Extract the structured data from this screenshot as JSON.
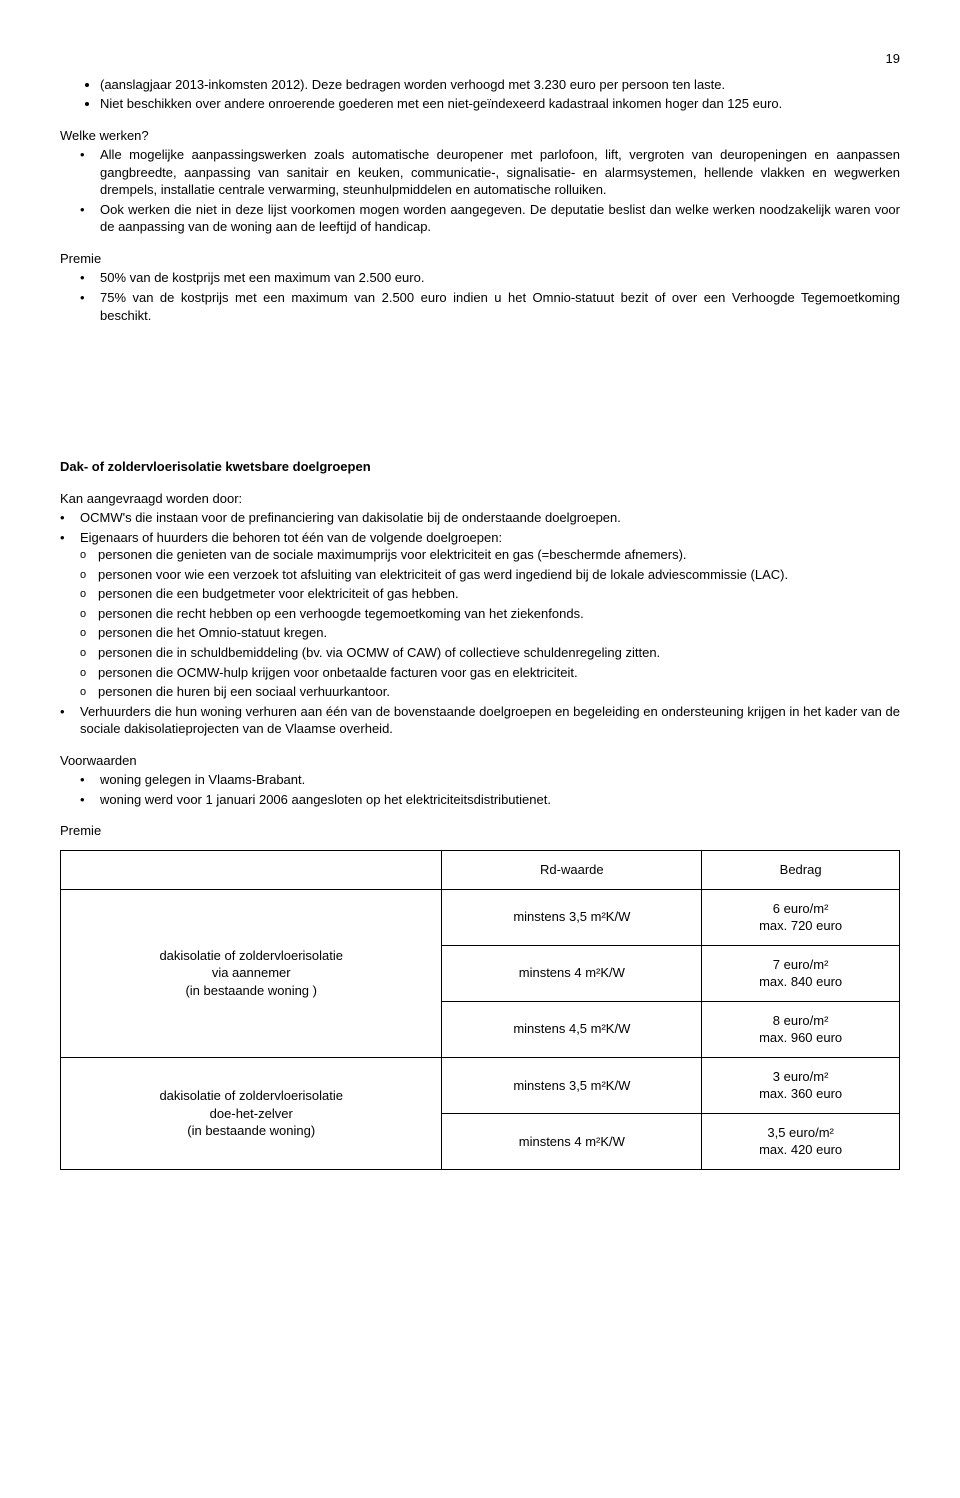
{
  "pageNumber": "19",
  "intro": {
    "items": [
      "(aanslagjaar 2013-inkomsten 2012). Deze bedragen worden verhoogd met 3.230 euro per persoon ten laste.",
      "Niet beschikken over andere onroerende goederen met een niet-geïndexeerd kadastraal inkomen hoger dan 125 euro."
    ]
  },
  "werken": {
    "heading": "Welke werken?",
    "items": [
      "Alle mogelijke aanpassingswerken zoals automatische deuropener met parlofoon, lift, vergroten van deuropeningen en aanpassen gangbreedte, aanpassing van sanitair en keuken, communicatie-, signalisatie- en alarmsystemen, hellende vlakken en wegwerken drempels, installatie centrale verwarming, steunhulpmiddelen en automatische rolluiken.",
      "Ook werken die niet in deze lijst voorkomen mogen worden aangegeven. De deputatie beslist dan welke werken noodzakelijk waren voor de aanpassing van de woning aan de leeftijd of handicap."
    ]
  },
  "premie1": {
    "heading": "Premie",
    "items": [
      "50% van de kostprijs met een maximum van 2.500 euro.",
      "75% van de kostprijs met een maximum van 2.500 euro indien u het Omnio-statuut bezit of over een Verhoogde Tegemoetkoming beschikt."
    ]
  },
  "dak": {
    "heading": "Dak- of zoldervloerisolatie kwetsbare doelgroepen",
    "kanHeading": "Kan aangevraagd worden door:",
    "items": [
      {
        "text": "OCMW's die instaan voor de prefinanciering van dakisolatie bij de onderstaande doelgroepen."
      },
      {
        "text": "Eigenaars of huurders die behoren tot één van de volgende doelgroepen:",
        "sub": [
          "personen die genieten van de sociale maximumprijs voor elektriciteit en gas (=beschermde afnemers).",
          "personen voor wie een verzoek tot afsluiting van elektriciteit of gas werd ingediend bij de lokale adviescommissie (LAC).",
          "personen die een budgetmeter voor elektriciteit of gas hebben.",
          "personen die recht hebben op een verhoogde tegemoetkoming van het ziekenfonds.",
          "personen die het Omnio-statuut kregen.",
          "personen die in schuldbemiddeling (bv. via OCMW of CAW) of collectieve schuldenregeling zitten.",
          "personen die OCMW-hulp krijgen voor onbetaalde facturen voor gas en elektriciteit.",
          "personen die huren bij een sociaal verhuurkantoor."
        ]
      },
      {
        "text": "Verhuurders die hun woning verhuren aan één van de bovenstaande doelgroepen en begeleiding en ondersteuning krijgen in het kader van de sociale dakisolatieprojecten van de Vlaamse overheid."
      }
    ]
  },
  "voorwaarden": {
    "heading": "Voorwaarden",
    "items": [
      "woning gelegen in Vlaams-Brabant.",
      "woning werd voor 1 januari 2006 aangesloten op het elektriciteitsdistributienet."
    ]
  },
  "premie2": {
    "heading": "Premie",
    "table": {
      "headers": [
        "",
        "Rd-waarde",
        "Bedrag"
      ],
      "groups": [
        {
          "label": "dakisolatie of zoldervloerisolatie\nvia aannemer\n(in bestaande woning )",
          "rows": [
            {
              "rd": "minstens 3,5 m²K/W",
              "bedrag": "6 euro/m²\nmax. 720 euro"
            },
            {
              "rd": "minstens 4 m²K/W",
              "bedrag": "7 euro/m²\nmax. 840 euro"
            },
            {
              "rd": "minstens 4,5 m²K/W",
              "bedrag": "8 euro/m²\nmax. 960 euro"
            }
          ]
        },
        {
          "label": "dakisolatie of zoldervloerisolatie\ndoe-het-zelver\n(in bestaande woning)",
          "rows": [
            {
              "rd": "minstens 3,5 m²K/W",
              "bedrag": "3 euro/m²\nmax. 360 euro"
            },
            {
              "rd": "minstens 4 m²K/W",
              "bedrag": "3,5 euro/m²\nmax. 420 euro"
            }
          ]
        }
      ]
    }
  }
}
